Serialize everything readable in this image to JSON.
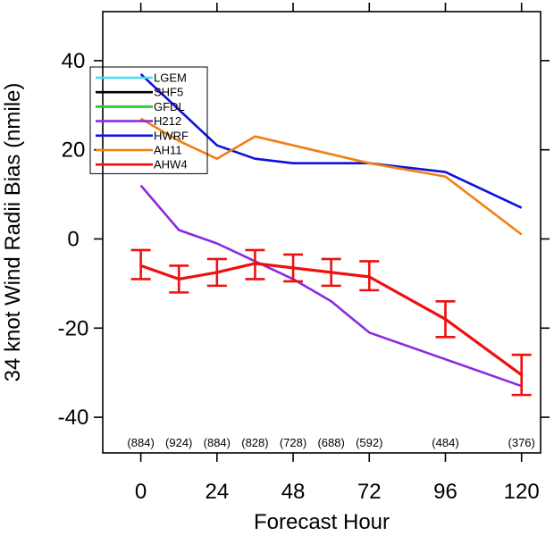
{
  "chart_data": {
    "type": "line",
    "title": "",
    "xlabel": "Forecast Hour",
    "ylabel": "34 knot Wind Radii Bias (nmile)",
    "xlim": [
      -12,
      126
    ],
    "ylim": [
      -48,
      51
    ],
    "xticks": [
      0,
      24,
      48,
      72,
      96,
      120
    ],
    "yticks": [
      -40,
      -20,
      0,
      20,
      40
    ],
    "grid": false,
    "legend_position": "top-left",
    "sample_sizes": [
      {
        "x": 0,
        "label": "(884)"
      },
      {
        "x": 12,
        "label": "(924)"
      },
      {
        "x": 24,
        "label": "(884)"
      },
      {
        "x": 36,
        "label": "(828)"
      },
      {
        "x": 48,
        "label": "(728)"
      },
      {
        "x": 60,
        "label": "(688)"
      },
      {
        "x": 72,
        "label": "(592)"
      },
      {
        "x": 96,
        "label": "(484)"
      },
      {
        "x": 120,
        "label": "(376)"
      }
    ],
    "series": [
      {
        "name": "LGEM",
        "color": "#40e0f0",
        "points": []
      },
      {
        "name": "SHF5",
        "color": "#000000",
        "points": []
      },
      {
        "name": "GFDL",
        "color": "#22cc22",
        "points": []
      },
      {
        "name": "H212",
        "color": "#8a2be2",
        "points": [
          [
            0,
            12
          ],
          [
            12,
            2
          ],
          [
            24,
            -1
          ],
          [
            36,
            -5
          ],
          [
            48,
            -9
          ],
          [
            60,
            -14
          ],
          [
            72,
            -21
          ],
          [
            96,
            -27
          ],
          [
            120,
            -33
          ]
        ]
      },
      {
        "name": "HWRF",
        "color": "#1010e0",
        "points": [
          [
            0,
            37
          ],
          [
            12,
            29
          ],
          [
            24,
            21
          ],
          [
            36,
            18
          ],
          [
            48,
            17
          ],
          [
            60,
            17
          ],
          [
            72,
            17
          ],
          [
            96,
            15
          ],
          [
            120,
            7
          ]
        ]
      },
      {
        "name": "AH11",
        "color": "#f08010",
        "points": [
          [
            0,
            27
          ],
          [
            12,
            22
          ],
          [
            24,
            18
          ],
          [
            36,
            23
          ],
          [
            48,
            21
          ],
          [
            60,
            19
          ],
          [
            72,
            17
          ],
          [
            96,
            14
          ],
          [
            120,
            1
          ]
        ]
      },
      {
        "name": "AHW4",
        "color": "#ee1010",
        "points": [
          [
            0,
            -6
          ],
          [
            12,
            -9
          ],
          [
            24,
            -7.5
          ],
          [
            36,
            -5.5
          ],
          [
            48,
            -6.5
          ],
          [
            60,
            -7.5
          ],
          [
            72,
            -8.5
          ],
          [
            96,
            -18
          ],
          [
            120,
            -30.5
          ]
        ],
        "error_bars": [
          [
            -9,
            -2.5
          ],
          [
            -12,
            -6
          ],
          [
            -10.5,
            -4.5
          ],
          [
            -9,
            -2.5
          ],
          [
            -9.5,
            -3.5
          ],
          [
            -10.5,
            -4.5
          ],
          [
            -11.5,
            -5
          ],
          [
            -22,
            -14
          ],
          [
            -35,
            -26
          ]
        ]
      }
    ]
  }
}
